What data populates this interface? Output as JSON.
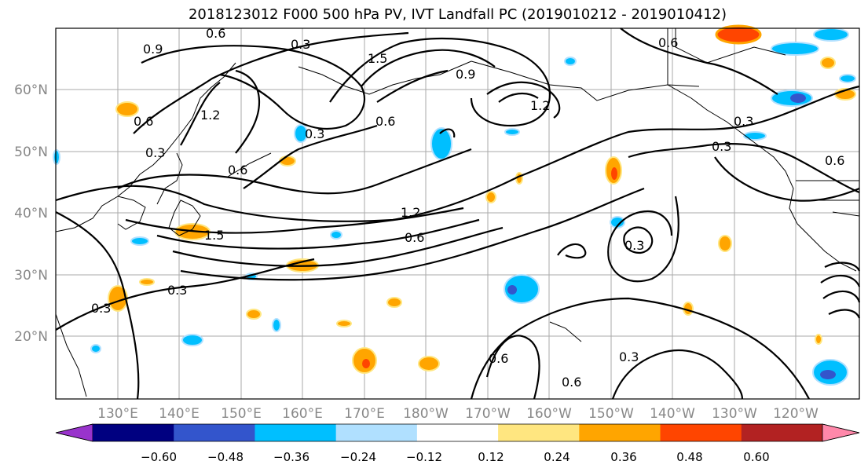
{
  "title": "2018123012 F000 500 hPa PV, IVT Landfall PC (2019010212 - 2019010412)",
  "lat_labels": [
    "60°N",
    "50°N",
    "40°N",
    "30°N",
    "20°N"
  ],
  "lon_labels": [
    "130°E",
    "140°E",
    "150°E",
    "160°E",
    "170°E",
    "180°W",
    "170°W",
    "160°W",
    "150°W",
    "140°W",
    "130°W",
    "120°W"
  ],
  "colorbar": {
    "tick_labels": [
      "−0.60",
      "−0.48",
      "−0.36",
      "−0.24",
      "−0.12",
      "0.12",
      "0.24",
      "0.36",
      "0.48",
      "0.60"
    ],
    "colors": [
      "#9933cc",
      "#000080",
      "#3355cc",
      "#00bfff",
      "#b0e0ff",
      "#ffffff",
      "#ffe680",
      "#ffa500",
      "#ff4500",
      "#b22222",
      "#ff88aa"
    ]
  },
  "contour_labels": [
    "0.9",
    "0.3",
    "0.6",
    "1.2",
    "0.3",
    "0.6",
    "0.3",
    "1.5",
    "0.6",
    "0.9",
    "1.2",
    "0.3",
    "1.2",
    "0.6",
    "0.3",
    "0.6",
    "0.3",
    "0.6",
    "1.5",
    "0.3",
    "0.3",
    "0.6",
    "0.6",
    "0.3",
    "0.6"
  ]
}
